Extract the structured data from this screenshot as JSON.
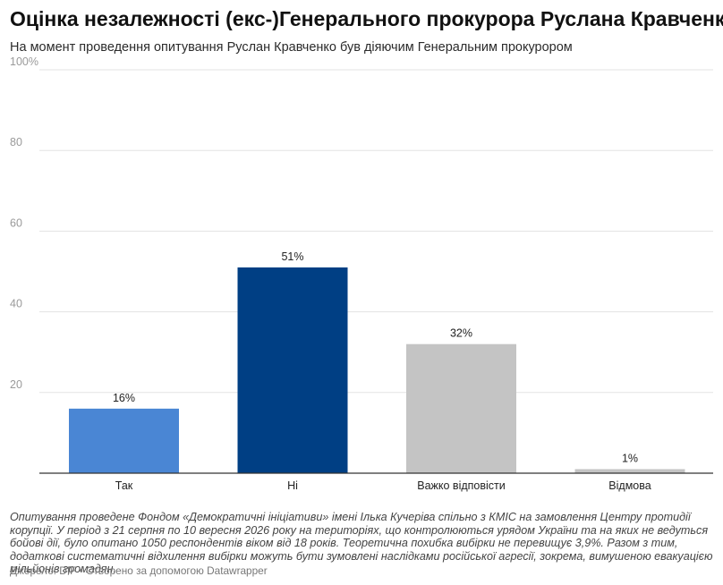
{
  "chart_data": {
    "type": "bar",
    "title": "Оцінка незалежності (екс-)Генерального прокурора Руслана Кравченко",
    "subtitle": "На момент проведення опитування Руслан Кравченко був діяючим Генеральним прокурором",
    "categories": [
      "Так",
      "Ні",
      "Важко відповісти",
      "Відмова"
    ],
    "values": [
      16,
      51,
      32,
      1
    ],
    "value_labels": [
      "16%",
      "51%",
      "32%",
      "1%"
    ],
    "bar_colors": [
      "#4a86d4",
      "#003f84",
      "#c4c4c4",
      "#c4c4c4"
    ],
    "ylim": [
      0,
      100
    ],
    "y_ticks": [
      20,
      40,
      60,
      80,
      100
    ],
    "y_tick_labels": [
      "20",
      "40",
      "60",
      "80",
      "100%"
    ],
    "grid": true,
    "xlabel": "",
    "ylabel": ""
  },
  "notes": "Опитування проведене Фондом «Демократичні ініціативи» імені Ілька Кучеріва спільно з КМІС на замовлення Центру протидії корупції. У період з 21 серпня по 10 вересня 2026 року на територіях, що контролюються урядом України та на яких не ведуться бойові дії, було опитано 1050 респондентів віком від 18 років. Теоретична похибка вибірки не перевищує 3,9%. Разом з тим, додаткові систематичні відхилення вибірки можуть бути зумовлені наслідками російської агресії, зокрема, вимушеною евакуацією мільйонів громадян.",
  "footer": "Джерело: DIF • Створено за допомогою Datawrapper"
}
